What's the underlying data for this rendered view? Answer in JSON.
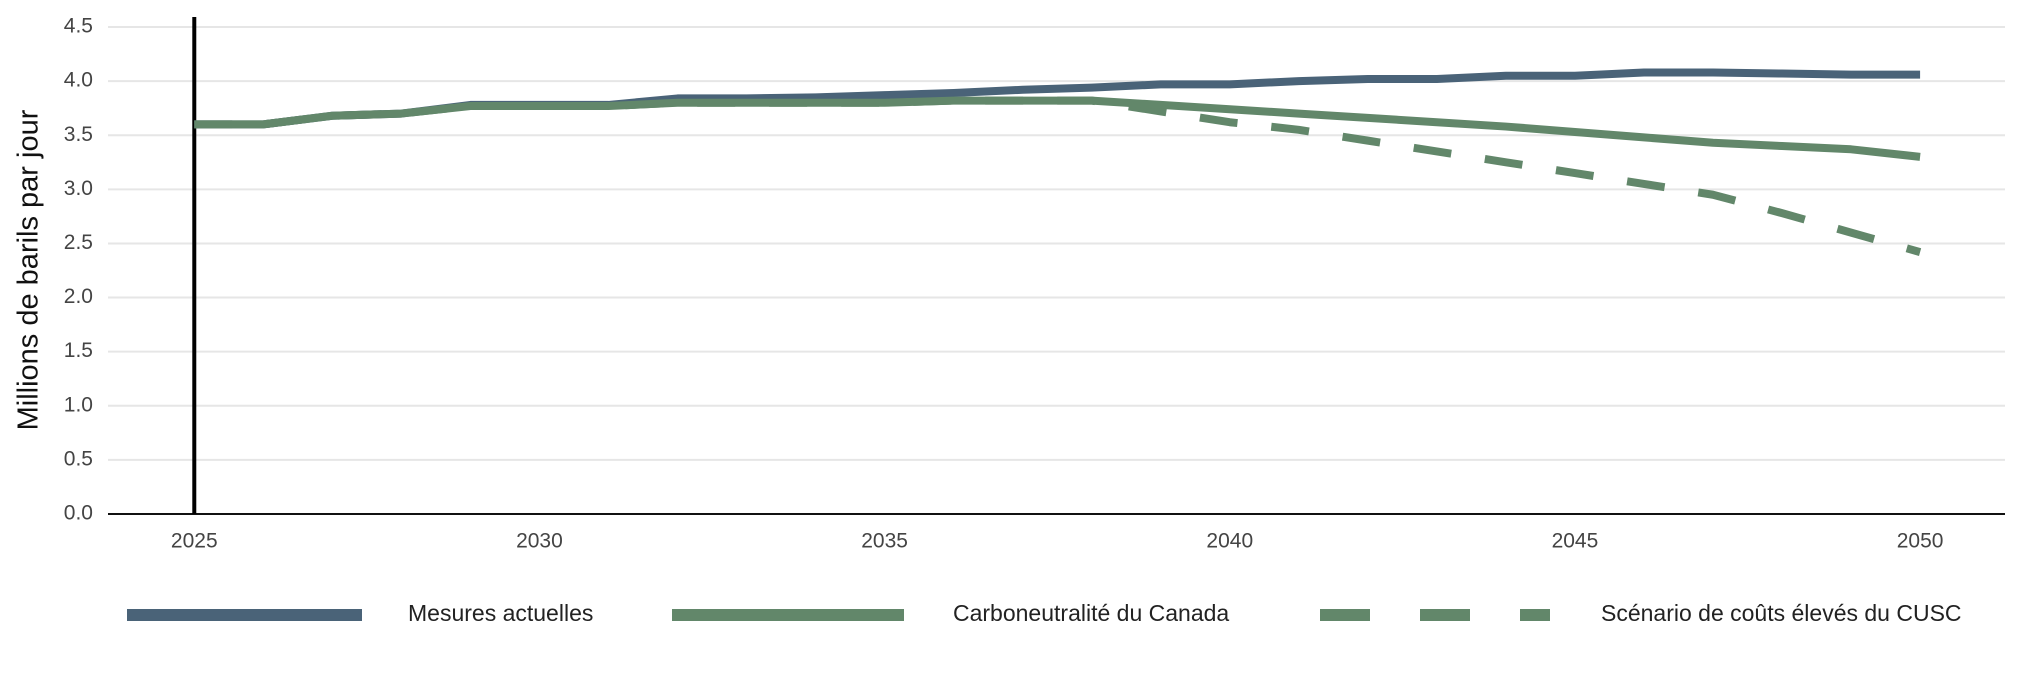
{
  "chart_data": {
    "type": "line",
    "y_label": "Millions de barils par jour",
    "x": [
      2025,
      2026,
      2027,
      2028,
      2029,
      2030,
      2031,
      2032,
      2033,
      2034,
      2035,
      2036,
      2037,
      2038,
      2039,
      2040,
      2041,
      2042,
      2043,
      2044,
      2045,
      2046,
      2047,
      2048,
      2049,
      2050
    ],
    "series": [
      {
        "name": "Mesures actuelles",
        "color": "#4a6378",
        "dashed": false,
        "values": [
          3.6,
          3.6,
          3.68,
          3.7,
          3.78,
          3.78,
          3.78,
          3.84,
          3.84,
          3.85,
          3.87,
          3.89,
          3.92,
          3.94,
          3.97,
          3.97,
          4.0,
          4.02,
          4.02,
          4.05,
          4.05,
          4.08,
          4.08,
          4.07,
          4.06,
          4.06
        ]
      },
      {
        "name": "Carboneutralité du Canada",
        "color": "#62876a",
        "dashed": false,
        "values": [
          3.6,
          3.6,
          3.68,
          3.7,
          3.77,
          3.77,
          3.77,
          3.8,
          3.8,
          3.8,
          3.8,
          3.82,
          3.82,
          3.82,
          3.78,
          3.74,
          3.7,
          3.66,
          3.62,
          3.58,
          3.53,
          3.48,
          3.43,
          3.4,
          3.37,
          3.3
        ]
      },
      {
        "name": "Scénario de coûts élevés du CUSC",
        "color": "#62876a",
        "dashed": true,
        "values": [
          3.6,
          3.6,
          3.68,
          3.7,
          3.77,
          3.77,
          3.77,
          3.8,
          3.8,
          3.8,
          3.8,
          3.82,
          3.82,
          3.82,
          3.72,
          3.62,
          3.55,
          3.45,
          3.35,
          3.25,
          3.15,
          3.05,
          2.95,
          2.78,
          2.6,
          2.42
        ]
      }
    ],
    "xlim": [
      2023.75,
      2051.23
    ],
    "xticks": [
      2025,
      2030,
      2035,
      2040,
      2045,
      2050
    ],
    "ylim": [
      0,
      4.5
    ],
    "yticks": [
      {
        "value": 0,
        "label": "0.0"
      },
      0.5,
      {
        "value": 1,
        "label": "1.0"
      },
      1.5,
      {
        "value": 2,
        "label": "2.0"
      },
      2.5,
      {
        "value": 3,
        "label": "3.0"
      },
      3.5,
      {
        "value": 4,
        "label": "4.0"
      },
      4.5
    ],
    "vline_x": 2025,
    "grid": true,
    "legend": "bottom"
  }
}
